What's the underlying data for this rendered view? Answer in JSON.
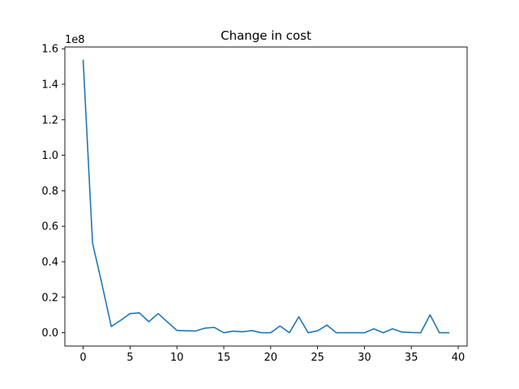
{
  "chart_data": {
    "type": "line",
    "title": "Change in cost",
    "xlabel": "",
    "ylabel": "",
    "y_offset_label": "1e8",
    "xlim": [
      -1.95,
      40.95
    ],
    "ylim": [
      -0.075,
      1.61
    ],
    "x_ticks": [
      0,
      5,
      10,
      15,
      20,
      25,
      30,
      35,
      40
    ],
    "x_tick_labels": [
      "0",
      "5",
      "10",
      "15",
      "20",
      "25",
      "30",
      "35",
      "40"
    ],
    "y_ticks": [
      0.0,
      0.2,
      0.4,
      0.6,
      0.8,
      1.0,
      1.2,
      1.4,
      1.6
    ],
    "y_tick_labels": [
      "0.0",
      "0.2",
      "0.4",
      "0.6",
      "0.8",
      "1.0",
      "1.2",
      "1.4",
      "1.6"
    ],
    "grid": false,
    "line_color": "#1f77b4",
    "series": [
      {
        "x": [
          0,
          1,
          2,
          3,
          4,
          5,
          6,
          7,
          8,
          9,
          10,
          11,
          12,
          13,
          14,
          15,
          16,
          17,
          18,
          19,
          20,
          21,
          22,
          23,
          24,
          25,
          26,
          27,
          28,
          29,
          30,
          31,
          32,
          33,
          34,
          35,
          36,
          37,
          38,
          39
        ],
        "values": [
          1.535,
          0.505,
          0.275,
          0.035,
          0.07,
          0.108,
          0.112,
          0.062,
          0.108,
          0.06,
          0.013,
          0.011,
          0.01,
          0.026,
          0.03,
          0.0,
          0.009,
          0.005,
          0.012,
          0.0,
          0.0,
          0.038,
          0.0,
          0.09,
          0.0,
          0.011,
          0.043,
          0.0,
          0.0,
          0.0,
          0.0,
          0.022,
          0.0,
          0.022,
          0.004,
          0.001,
          0.0,
          0.101,
          0.0,
          0.0
        ]
      }
    ]
  }
}
